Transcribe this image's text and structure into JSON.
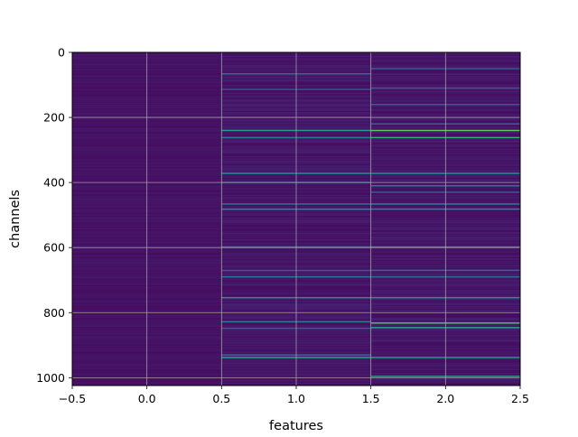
{
  "chart_data": {
    "type": "heatmap",
    "title": "",
    "xlabel": "features",
    "ylabel": "channels",
    "xlim": [
      -0.5,
      2.5
    ],
    "ylim": [
      1024,
      0
    ],
    "y_inverted": true,
    "grid": true,
    "colormap": "viridis",
    "x_ticks": [
      -0.5,
      0.0,
      0.5,
      1.0,
      1.5,
      2.0,
      2.5
    ],
    "x_tick_labels": [
      "−0.5",
      "0.0",
      "0.5",
      "1.0",
      "1.5",
      "2.0",
      "2.5"
    ],
    "y_ticks": [
      0,
      200,
      400,
      600,
      800,
      1000
    ],
    "y_tick_labels": [
      "0",
      "200",
      "400",
      "600",
      "800",
      "1000"
    ],
    "n_channels": 1024,
    "features": [
      0,
      1,
      2
    ],
    "background_level": 0.05,
    "highlights": [
      {
        "feature": 1,
        "channel": 66,
        "value": 0.38
      },
      {
        "feature": 1,
        "channel": 114,
        "value": 0.25
      },
      {
        "feature": 1,
        "channel": 240,
        "value": 0.55
      },
      {
        "feature": 1,
        "channel": 262,
        "value": 0.42
      },
      {
        "feature": 1,
        "channel": 372,
        "value": 0.5
      },
      {
        "feature": 1,
        "channel": 400,
        "value": 0.3
      },
      {
        "feature": 1,
        "channel": 466,
        "value": 0.4
      },
      {
        "feature": 1,
        "channel": 482,
        "value": 0.45
      },
      {
        "feature": 1,
        "channel": 598,
        "value": 0.35
      },
      {
        "feature": 1,
        "channel": 670,
        "value": 0.3
      },
      {
        "feature": 1,
        "channel": 690,
        "value": 0.4
      },
      {
        "feature": 1,
        "channel": 754,
        "value": 0.5
      },
      {
        "feature": 1,
        "channel": 828,
        "value": 0.4
      },
      {
        "feature": 1,
        "channel": 848,
        "value": 0.3
      },
      {
        "feature": 1,
        "channel": 930,
        "value": 0.35
      },
      {
        "feature": 1,
        "channel": 938,
        "value": 0.6
      },
      {
        "feature": 2,
        "channel": 50,
        "value": 0.3
      },
      {
        "feature": 2,
        "channel": 110,
        "value": 0.3
      },
      {
        "feature": 2,
        "channel": 160,
        "value": 0.3
      },
      {
        "feature": 2,
        "channel": 220,
        "value": 0.3
      },
      {
        "feature": 2,
        "channel": 240,
        "value": 0.75
      },
      {
        "feature": 2,
        "channel": 262,
        "value": 0.65
      },
      {
        "feature": 2,
        "channel": 372,
        "value": 0.5
      },
      {
        "feature": 2,
        "channel": 410,
        "value": 0.4
      },
      {
        "feature": 2,
        "channel": 430,
        "value": 0.3
      },
      {
        "feature": 2,
        "channel": 466,
        "value": 0.45
      },
      {
        "feature": 2,
        "channel": 482,
        "value": 0.45
      },
      {
        "feature": 2,
        "channel": 598,
        "value": 0.45
      },
      {
        "feature": 2,
        "channel": 670,
        "value": 0.35
      },
      {
        "feature": 2,
        "channel": 690,
        "value": 0.35
      },
      {
        "feature": 2,
        "channel": 754,
        "value": 0.5
      },
      {
        "feature": 2,
        "channel": 832,
        "value": 0.72
      },
      {
        "feature": 2,
        "channel": 846,
        "value": 0.6
      },
      {
        "feature": 2,
        "channel": 938,
        "value": 0.55
      },
      {
        "feature": 2,
        "channel": 996,
        "value": 0.6
      }
    ]
  }
}
